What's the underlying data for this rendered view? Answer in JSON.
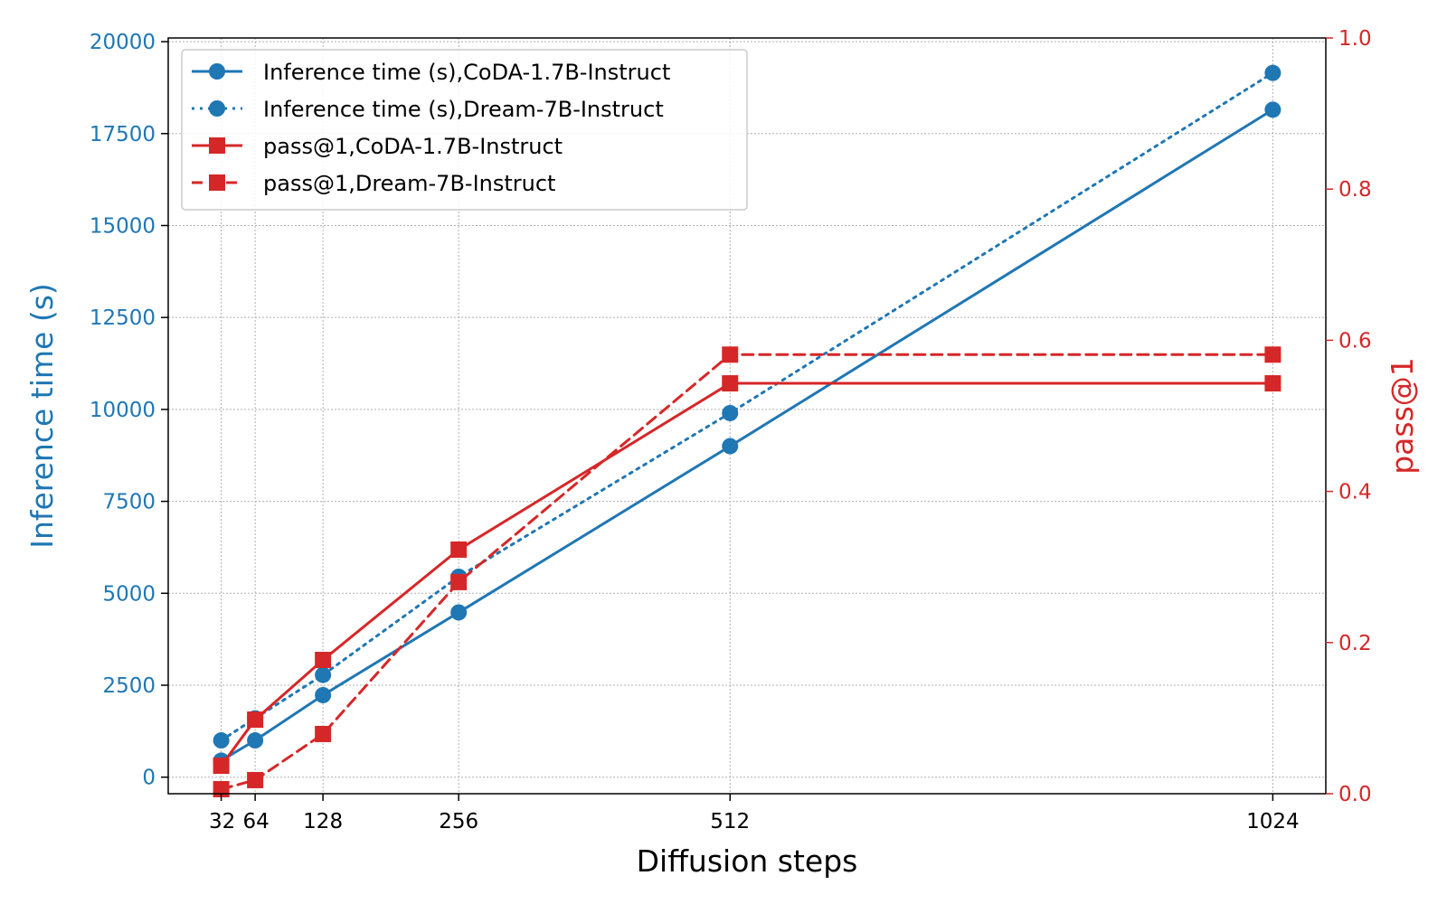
{
  "chart_data": {
    "type": "line",
    "xlabel": "Diffusion steps",
    "ylabel_left": "Inference time (s)",
    "ylabel_right": "pass@1",
    "x": [
      32,
      64,
      128,
      256,
      512,
      1024
    ],
    "x_tick_labels": [
      "32",
      "64",
      "128",
      "256",
      "512",
      "1024"
    ],
    "xlim": [
      -18,
      1074
    ],
    "ylim_left": [
      -450,
      20100
    ],
    "ylim_right": [
      0.0,
      1.0
    ],
    "y_ticks_left": [
      "0",
      "2500",
      "5000",
      "7500",
      "10000",
      "12500",
      "15000",
      "17500",
      "20000"
    ],
    "y_ticks_right": [
      "0.0",
      "0.2",
      "0.4",
      "0.6",
      "0.8",
      "1.0"
    ],
    "grid": true,
    "legend_position": "top-left",
    "series": [
      {
        "name": "Inference time (s),CoDA-1.7B-Instruct",
        "axis": "left",
        "marker": "circle",
        "line": "solid",
        "color": "#1f77b4",
        "values": [
          450,
          1000,
          2230,
          4480,
          9000,
          18150
        ]
      },
      {
        "name": "Inference time (s),Dream-7B-Instruct",
        "axis": "left",
        "marker": "circle",
        "line": "dotted",
        "color": "#1f77b4",
        "values": [
          1000,
          1600,
          2780,
          5450,
          9900,
          19150
        ]
      },
      {
        "name": "pass@1,CoDA-1.7B-Instruct",
        "axis": "right",
        "marker": "square",
        "line": "solid",
        "color": "#d62728",
        "values": [
          0.037,
          0.098,
          0.177,
          0.323,
          0.543,
          0.543
        ]
      },
      {
        "name": "pass@1,Dream-7B-Instruct",
        "axis": "right",
        "marker": "square",
        "line": "dashed",
        "color": "#d62728",
        "values": [
          0.006,
          0.018,
          0.079,
          0.28,
          0.581,
          0.581
        ]
      }
    ]
  },
  "colors": {
    "left_axis": "#1f77b4",
    "right_axis": "#d62728",
    "grid": "#b0b0b0"
  }
}
